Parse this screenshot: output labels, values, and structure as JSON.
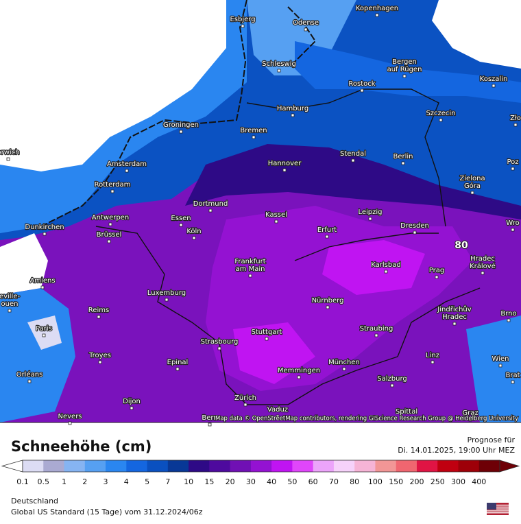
{
  "map": {
    "cities": [
      [
        "Esbjerg"
      ],
      [
        "Kopenhagen"
      ],
      [
        "Odense"
      ],
      [
        "Schleswig"
      ],
      [
        "Bergen",
        "auf Rügen"
      ],
      [
        "Rostock"
      ],
      [
        "Koszalin"
      ],
      [
        "Hamburg"
      ],
      [
        "Szczecin"
      ],
      [
        "Zło"
      ],
      [
        "Bremen"
      ],
      [
        "Groningen"
      ],
      [
        "orwich"
      ],
      [
        "Amsterdam"
      ],
      [
        "Hannover"
      ],
      [
        "Stendal"
      ],
      [
        "Berlin"
      ],
      [
        "Poz"
      ],
      [
        "Zielona",
        "Góra"
      ],
      [
        "Rotterdam"
      ],
      [
        "Dortmund"
      ],
      [
        "Leipzig"
      ],
      [
        "Kassel"
      ],
      [
        "Antwerpen"
      ],
      [
        "Essen"
      ],
      [
        "Dunkirchen"
      ],
      [
        "Köln"
      ],
      [
        "Erfurt"
      ],
      [
        "Dresden"
      ],
      [
        "Wro"
      ],
      [
        "Brüssel"
      ],
      [
        "Frankfurt",
        "am Main"
      ],
      [
        "Karlsbad"
      ],
      [
        "Hradec",
        "Králové"
      ],
      [
        "Amiens"
      ],
      [
        "Prag"
      ],
      [
        "Luxemburg"
      ],
      [
        "eville-",
        "ouen"
      ],
      [
        "Nürnberg"
      ],
      [
        "Jindřichův",
        "Hradec"
      ],
      [
        "Brno"
      ],
      [
        "Reims"
      ],
      [
        "Paris"
      ],
      [
        "Stuttgart"
      ],
      [
        "Straubing"
      ],
      [
        "Strasbourg"
      ],
      [
        "Troyes"
      ],
      [
        "Linz"
      ],
      [
        "Wien"
      ],
      [
        "Brat"
      ],
      [
        "Epinal"
      ],
      [
        "München"
      ],
      [
        "Memmingen"
      ],
      [
        "Orléans"
      ],
      [
        "Salzburg"
      ],
      [
        "Dijon"
      ],
      [
        "Zürich"
      ],
      [
        "Vaduz"
      ],
      [
        "Bern"
      ],
      [
        "Spittal"
      ],
      [
        "Nevers"
      ],
      [
        "Graz"
      ]
    ],
    "peak_label": 80,
    "attribution": "Map data © OpenStreetMap contributors, rendering GIScience Research Group @ Heidelberg University"
  },
  "legend": {
    "title": "Schneehöhe (cm)",
    "forecast_label": "Prognose für",
    "forecast_time": "Di. 14.01.2025, 19:00 Uhr MEZ",
    "levels": [
      {
        "value": 0.1,
        "color": "#dcdcf4"
      },
      {
        "value": 0.5,
        "color": "#aaaad2"
      },
      {
        "value": 1,
        "color": "#86b4f2"
      },
      {
        "value": 2,
        "color": "#56a0f2"
      },
      {
        "value": 3,
        "color": "#2a86f0"
      },
      {
        "value": 4,
        "color": "#1466e0"
      },
      {
        "value": 5,
        "color": "#0a50c0"
      },
      {
        "value": 7,
        "color": "#083896"
      },
      {
        "value": 10,
        "color": "#2e0a86"
      },
      {
        "value": 15,
        "color": "#4e0a9e"
      },
      {
        "value": 20,
        "color": "#7010b4"
      },
      {
        "value": 30,
        "color": "#9412d2"
      },
      {
        "value": 40,
        "color": "#c014f2"
      },
      {
        "value": 50,
        "color": "#e046fa"
      },
      {
        "value": 60,
        "color": "#eca4fa"
      },
      {
        "value": 70,
        "color": "#f6d2fa"
      },
      {
        "value": 80,
        "color": "#f6b4d6"
      },
      {
        "value": 100,
        "color": "#f29696"
      },
      {
        "value": 150,
        "color": "#f06670"
      },
      {
        "value": 200,
        "color": "#e01444"
      },
      {
        "value": 250,
        "color": "#c00010"
      },
      {
        "value": 300,
        "color": "#9e0008"
      },
      {
        "value": 400,
        "color": "#6e0006"
      }
    ]
  },
  "footer": {
    "region": "Deutschland",
    "model": "Global US Standard (15 Tage) vom 31.12.2024/06z"
  }
}
